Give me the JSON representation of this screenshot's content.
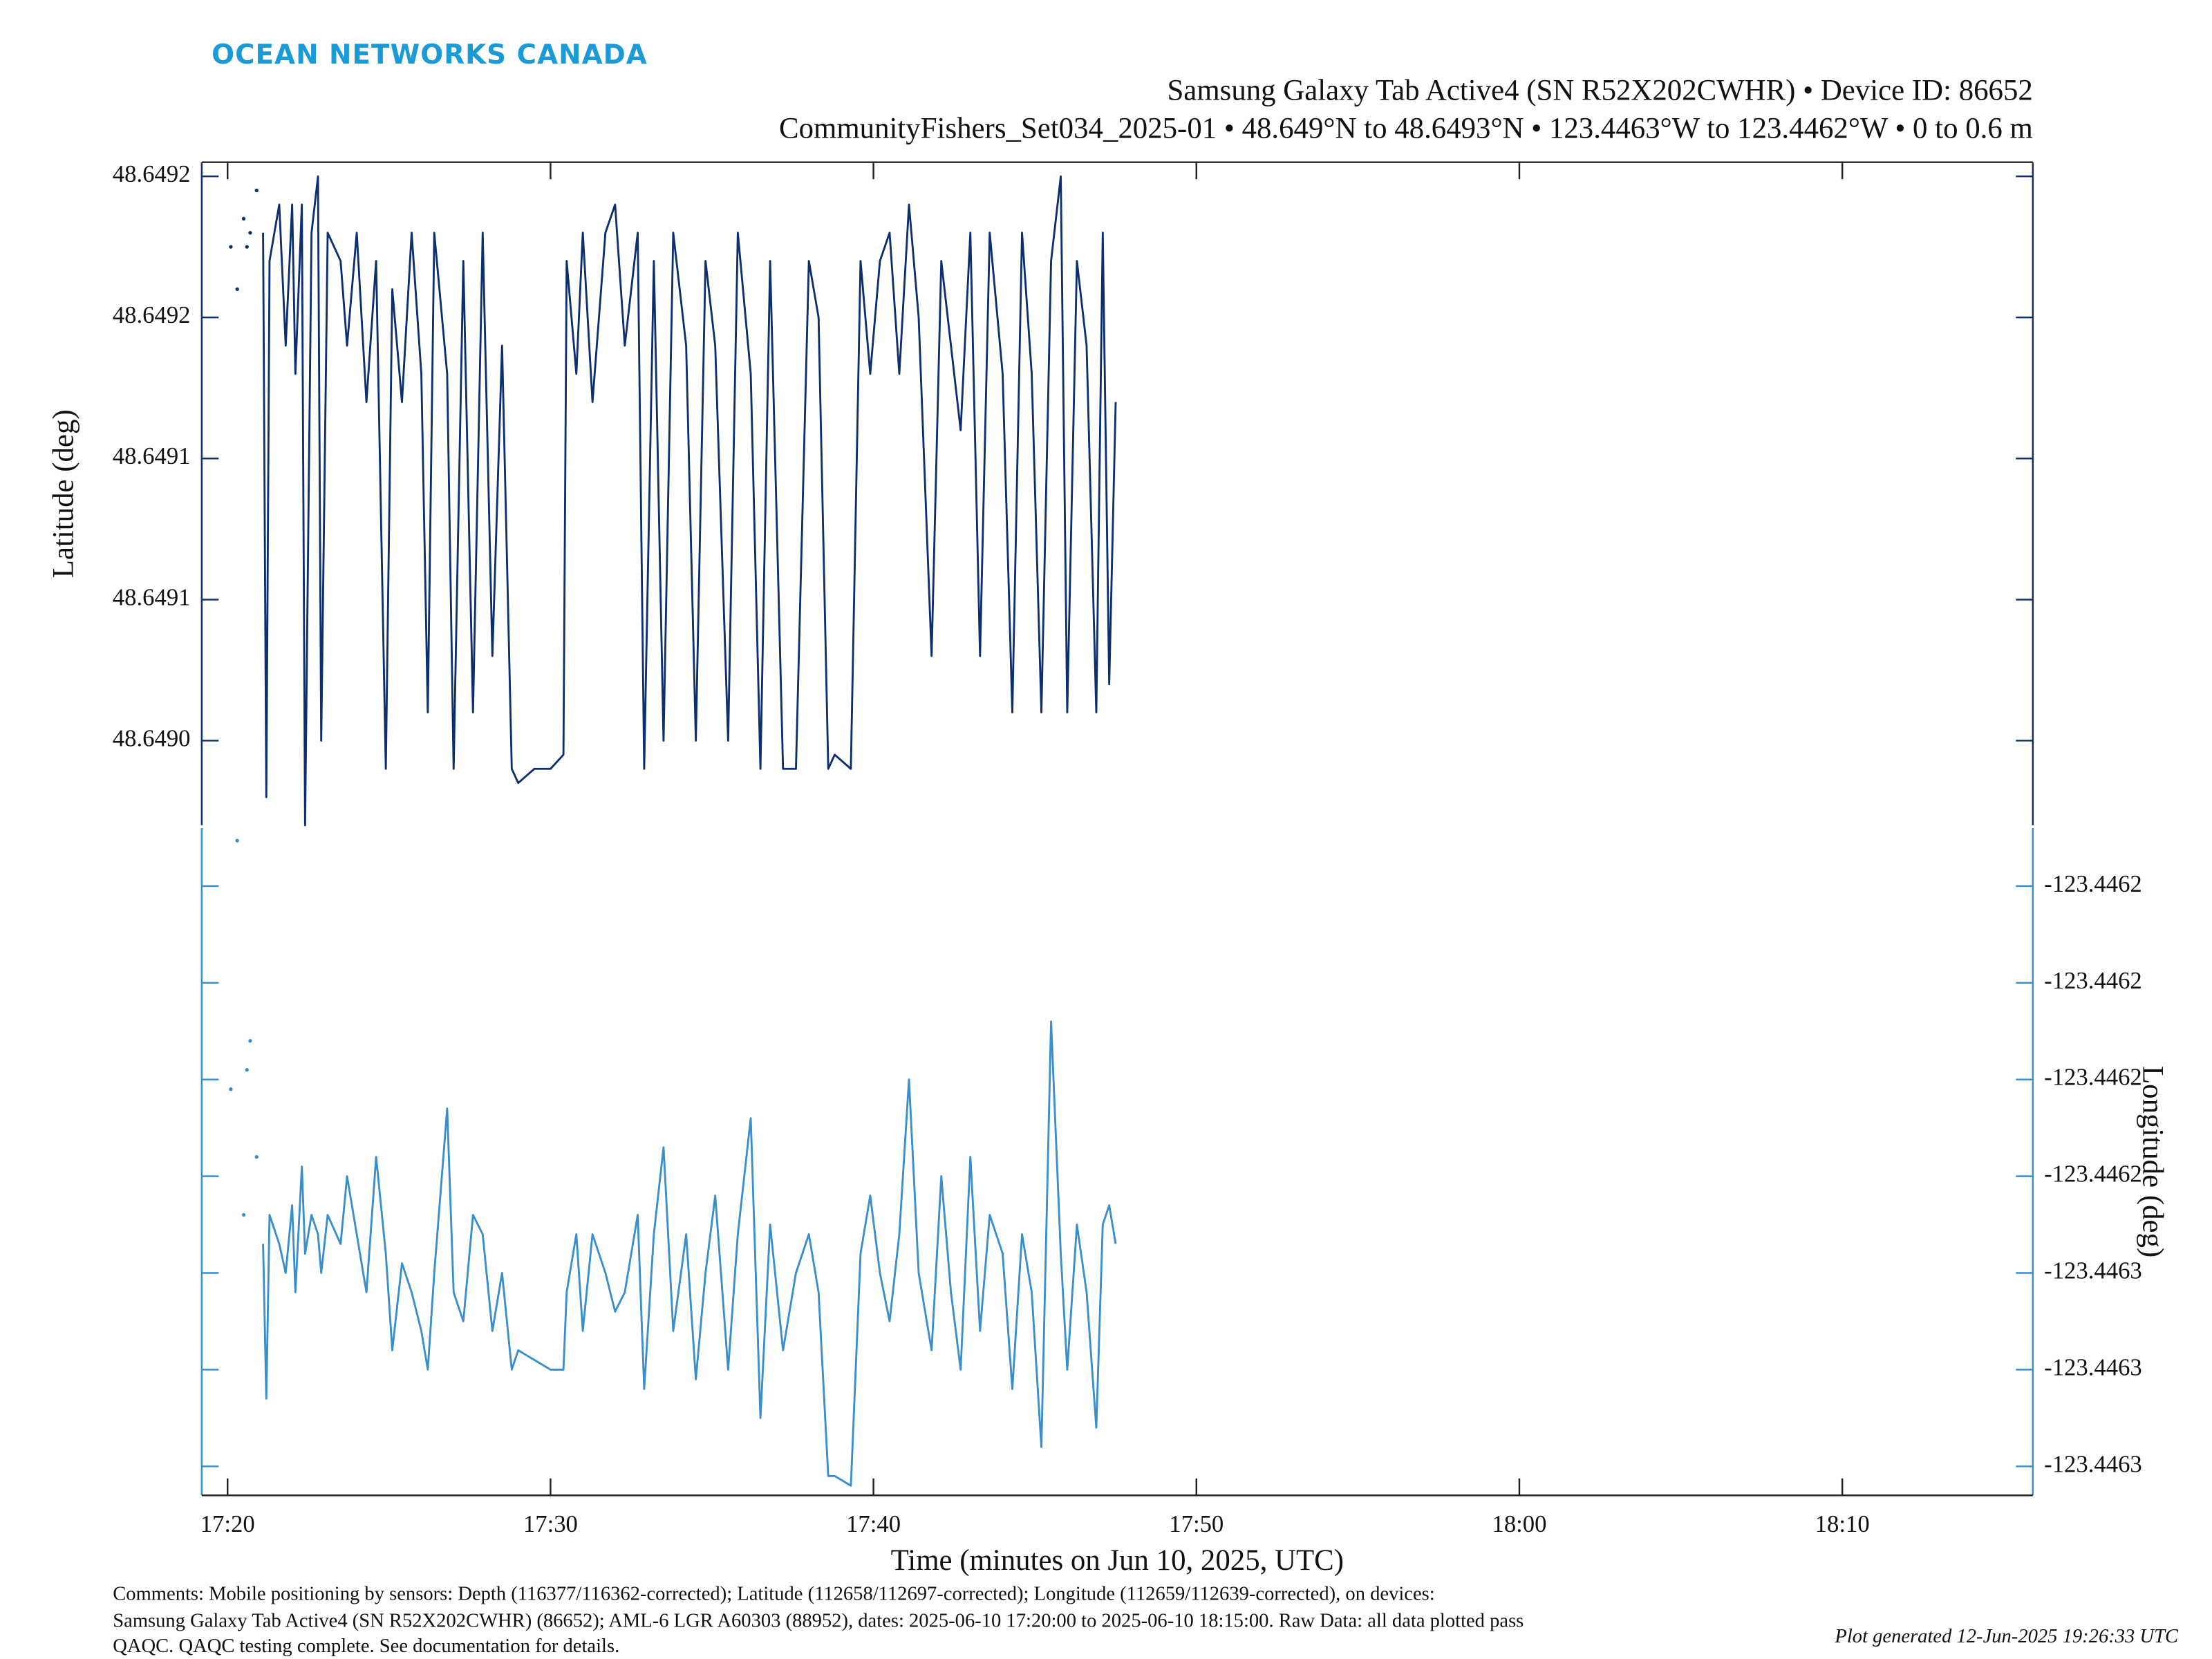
{
  "header": {
    "logo": "OCEAN NETWORKS CANADA",
    "title": "Samsung Galaxy Tab Active4 (SN R52X202CWHR) • Device ID: 86652",
    "subtitle": "CommunityFishers_Set034_2025-01 • 48.649°N to 48.6493°N • 123.4463°W to 123.4462°W • 0 to 0.6 m"
  },
  "chart_data": [
    {
      "type": "line",
      "ylabel": "Latitude (deg)",
      "yaxis_side": "left",
      "axis_color": "#0e2f6e",
      "xlim": [
        1039.2,
        1095.9
      ],
      "ylim": [
        48.64897,
        48.649205
      ],
      "yticks": [
        {
          "value": 48.649,
          "label": "48.6490"
        },
        {
          "value": 48.64905,
          "label": "48.6491"
        },
        {
          "value": 48.6491,
          "label": "48.6491"
        },
        {
          "value": 48.64915,
          "label": "48.6492"
        },
        {
          "value": 48.6492,
          "label": "48.6492"
        }
      ],
      "x": [
        1041.1,
        1041.2,
        1041.3,
        1041.6,
        1041.8,
        1042.0,
        1042.1,
        1042.3,
        1042.4,
        1042.6,
        1042.8,
        1042.9,
        1043.1,
        1043.5,
        1043.7,
        1044.0,
        1044.3,
        1044.6,
        1044.9,
        1045.1,
        1045.4,
        1045.7,
        1046.0,
        1046.2,
        1046.4,
        1046.8,
        1047.0,
        1047.3,
        1047.6,
        1047.9,
        1048.2,
        1048.5,
        1048.8,
        1049.0,
        1049.5,
        1050.0,
        1050.4,
        1050.5,
        1050.8,
        1051.0,
        1051.3,
        1051.7,
        1052.0,
        1052.3,
        1052.7,
        1052.9,
        1053.2,
        1053.5,
        1053.8,
        1054.2,
        1054.5,
        1054.8,
        1055.1,
        1055.5,
        1055.8,
        1056.2,
        1056.5,
        1056.8,
        1057.2,
        1057.6,
        1058.0,
        1058.3,
        1058.6,
        1058.8,
        1059.3,
        1059.6,
        1059.9,
        1060.2,
        1060.5,
        1060.8,
        1061.1,
        1061.4,
        1061.8,
        1062.1,
        1062.4,
        1062.7,
        1063.0,
        1063.3,
        1063.6,
        1064.0,
        1064.3,
        1064.6,
        1064.9,
        1065.2,
        1065.5,
        1065.8,
        1066.0,
        1066.3,
        1066.6,
        1066.9,
        1067.1,
        1067.3,
        1067.5
      ],
      "series": [
        {
          "color": "#0e2f6e",
          "values": [
            48.64918,
            48.64898,
            48.64917,
            48.64919,
            48.64914,
            48.64919,
            48.64913,
            48.64919,
            48.64897,
            48.64918,
            48.6492,
            48.649,
            48.64918,
            48.64917,
            48.64914,
            48.64918,
            48.64912,
            48.64917,
            48.64899,
            48.64916,
            48.64912,
            48.64918,
            48.64913,
            48.64901,
            48.64918,
            48.64913,
            48.64899,
            48.64917,
            48.64901,
            48.64918,
            48.64903,
            48.64914,
            48.64899,
            48.648985,
            48.64899,
            48.64899,
            48.648995,
            48.64917,
            48.64913,
            48.64918,
            48.64912,
            48.64918,
            48.64919,
            48.64914,
            48.64918,
            48.64899,
            48.64917,
            48.649,
            48.64918,
            48.64914,
            48.649,
            48.64917,
            48.64914,
            48.649,
            48.64918,
            48.64913,
            48.64899,
            48.64917,
            48.64899,
            48.64899,
            48.64917,
            48.64915,
            48.64899,
            48.648995,
            48.64899,
            48.64917,
            48.64913,
            48.64917,
            48.64918,
            48.64913,
            48.64919,
            48.64915,
            48.64903,
            48.64917,
            48.64914,
            48.64911,
            48.64918,
            48.64903,
            48.64918,
            48.64913,
            48.64901,
            48.64918,
            48.64913,
            48.64901,
            48.64917,
            48.6492,
            48.64901,
            48.64917,
            48.64914,
            48.64901,
            48.64918,
            48.64902,
            48.64912
          ]
        },
        {
          "color": "#0e2f6e",
          "style": "markers",
          "x": [
            1040.1,
            1040.3,
            1040.5,
            1040.6,
            1040.7,
            1040.9
          ],
          "values": [
            48.649175,
            48.64916,
            48.649185,
            48.649175,
            48.64918,
            48.649195
          ]
        }
      ]
    },
    {
      "type": "line",
      "ylabel": "Longitude (deg)",
      "xlabel": "Time (minutes on Jun 10, 2025, UTC)",
      "yaxis_side": "right",
      "axis_color": "#3a8ec9",
      "xlim": [
        1039.2,
        1095.9
      ],
      "ylim": [
        -123.446283,
        -123.446214
      ],
      "xticks": [
        {
          "value": 1040,
          "label": "17:20"
        },
        {
          "value": 1050,
          "label": "17:30"
        },
        {
          "value": 1060,
          "label": "17:40"
        },
        {
          "value": 1070,
          "label": "17:50"
        },
        {
          "value": 1080,
          "label": "18:00"
        },
        {
          "value": 1090,
          "label": "18:10"
        }
      ],
      "yticks": [
        {
          "value": -123.44628,
          "label": "-123.4463"
        },
        {
          "value": -123.44627,
          "label": "-123.4463"
        },
        {
          "value": -123.44626,
          "label": "-123.4463"
        },
        {
          "value": -123.44625,
          "label": "-123.4462"
        },
        {
          "value": -123.44624,
          "label": "-123.4462"
        },
        {
          "value": -123.44623,
          "label": "-123.4462"
        },
        {
          "value": -123.44622,
          "label": "-123.4462"
        }
      ],
      "x": [
        1041.1,
        1041.2,
        1041.3,
        1041.6,
        1041.8,
        1042.0,
        1042.1,
        1042.3,
        1042.4,
        1042.6,
        1042.8,
        1042.9,
        1043.1,
        1043.5,
        1043.7,
        1044.0,
        1044.3,
        1044.6,
        1044.9,
        1045.1,
        1045.4,
        1045.7,
        1046.0,
        1046.2,
        1046.4,
        1046.8,
        1047.0,
        1047.3,
        1047.6,
        1047.9,
        1048.2,
        1048.5,
        1048.8,
        1049.0,
        1049.5,
        1050.0,
        1050.4,
        1050.5,
        1050.8,
        1051.0,
        1051.3,
        1051.7,
        1052.0,
        1052.3,
        1052.7,
        1052.9,
        1053.2,
        1053.5,
        1053.8,
        1054.2,
        1054.5,
        1054.8,
        1055.1,
        1055.5,
        1055.8,
        1056.2,
        1056.5,
        1056.8,
        1057.2,
        1057.6,
        1058.0,
        1058.3,
        1058.6,
        1058.8,
        1059.3,
        1059.6,
        1059.9,
        1060.2,
        1060.5,
        1060.8,
        1061.1,
        1061.4,
        1061.8,
        1062.1,
        1062.4,
        1062.7,
        1063.0,
        1063.3,
        1063.6,
        1064.0,
        1064.3,
        1064.6,
        1064.9,
        1065.2,
        1065.5,
        1065.8,
        1066.0,
        1066.3,
        1066.6,
        1066.9,
        1067.1,
        1067.3,
        1067.5
      ],
      "series": [
        {
          "color": "#3a8ec9",
          "values": [
            -123.446257,
            -123.446273,
            -123.446254,
            -123.446257,
            -123.44626,
            -123.446253,
            -123.446262,
            -123.446249,
            -123.446258,
            -123.446254,
            -123.446256,
            -123.44626,
            -123.446254,
            -123.446257,
            -123.44625,
            -123.446256,
            -123.446262,
            -123.446248,
            -123.446258,
            -123.446268,
            -123.446259,
            -123.446262,
            -123.446266,
            -123.44627,
            -123.44626,
            -123.446243,
            -123.446262,
            -123.446265,
            -123.446254,
            -123.446256,
            -123.446266,
            -123.44626,
            -123.44627,
            -123.446268,
            -123.446269,
            -123.44627,
            -123.44627,
            -123.446262,
            -123.446256,
            -123.446266,
            -123.446256,
            -123.44626,
            -123.446264,
            -123.446262,
            -123.446254,
            -123.446272,
            -123.446256,
            -123.446247,
            -123.446266,
            -123.446256,
            -123.446271,
            -123.44626,
            -123.446252,
            -123.44627,
            -123.446256,
            -123.446244,
            -123.446275,
            -123.446255,
            -123.446268,
            -123.44626,
            -123.446256,
            -123.446262,
            -123.446281,
            -123.446281,
            -123.446282,
            -123.446258,
            -123.446252,
            -123.44626,
            -123.446265,
            -123.446256,
            -123.44624,
            -123.44626,
            -123.446268,
            -123.44625,
            -123.446262,
            -123.44627,
            -123.446248,
            -123.446266,
            -123.446254,
            -123.446258,
            -123.446272,
            -123.446256,
            -123.446262,
            -123.446278,
            -123.446234,
            -123.446258,
            -123.44627,
            -123.446255,
            -123.446262,
            -123.446276,
            -123.446255,
            -123.446253,
            -123.446257
          ]
        },
        {
          "color": "#3a8ec9",
          "style": "markers",
          "x": [
            1040.3,
            1040.1,
            1040.7,
            1040.6,
            1040.9,
            1040.5
          ],
          "values": [
            -123.4462153,
            -123.446241,
            -123.446236,
            -123.446239,
            -123.446248,
            -123.446254
          ]
        }
      ]
    }
  ],
  "footer": {
    "comments": [
      "Comments: Mobile positioning by sensors: Depth (116377/116362-corrected); Latitude (112658/112697-corrected); Longitude (112659/112639-corrected), on devices:",
      "Samsung Galaxy Tab Active4 (SN R52X202CWHR) (86652); AML-6 LGR A60303 (88952), dates: 2025-06-10 17:20:00 to 2025-06-10 18:15:00. Raw Data: all data plotted pass",
      "QAQC. QAQC testing complete. See documentation for details."
    ],
    "generated": "Plot generated 12-Jun-2025 19:26:33 UTC"
  }
}
